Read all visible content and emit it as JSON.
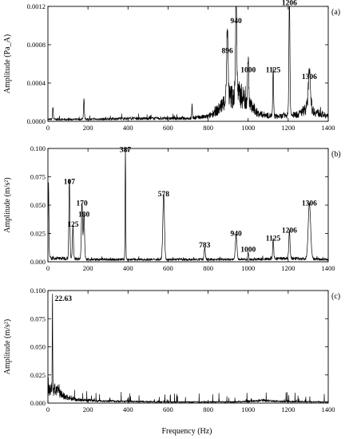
{
  "figure": {
    "xlabel": "Frequency (Hz)"
  },
  "chart_data": [
    {
      "type": "line",
      "panel_tag": "(a)",
      "ylabel": "Amplitude (Pa_A)",
      "xlim": [
        0,
        1400
      ],
      "ylim": [
        0,
        0.0012
      ],
      "x_ticks": [
        0,
        200,
        400,
        600,
        800,
        1000,
        1200,
        1400
      ],
      "x_tick_labels": [
        "0",
        "200",
        "400",
        "600",
        "800",
        "1000",
        "1200",
        "1400"
      ],
      "y_ticks": [
        0,
        0.0004,
        0.0008,
        0.0012
      ],
      "y_tick_labels": [
        "0.0000",
        "0.0004",
        "0.0008",
        "0.0012"
      ],
      "baseline": [
        [
          0,
          2e-05
        ],
        [
          200,
          2e-05
        ],
        [
          400,
          3e-05
        ],
        [
          600,
          3e-05
        ],
        [
          700,
          3e-05
        ],
        [
          800,
          5e-05
        ],
        [
          850,
          0.00012
        ],
        [
          880,
          0.0002
        ],
        [
          900,
          0.00025
        ],
        [
          960,
          0.00028
        ],
        [
          1050,
          8e-05
        ],
        [
          1100,
          6e-05
        ],
        [
          1150,
          5e-05
        ],
        [
          1250,
          7e-05
        ],
        [
          1280,
          0.00012
        ],
        [
          1306,
          0.00016
        ],
        [
          1330,
          0.0001
        ],
        [
          1400,
          5e-05
        ]
      ],
      "noise": 4e-05,
      "peaks": [
        {
          "x": 25,
          "y": 0.00012,
          "width": 2
        },
        {
          "x": 180,
          "y": 0.0002,
          "width": 2
        },
        {
          "x": 720,
          "y": 0.00013,
          "width": 1.5
        },
        {
          "x": 896,
          "y": 0.00068,
          "width": 3.5
        },
        {
          "x": 940,
          "y": 0.00099,
          "width": 3
        },
        {
          "x": 1000,
          "y": 0.00048,
          "width": 2.5
        },
        {
          "x": 1125,
          "y": 0.00048,
          "width": 2
        },
        {
          "x": 1206,
          "y": 0.00118,
          "width": 2.5
        },
        {
          "x": 1306,
          "y": 0.00038,
          "width": 5
        }
      ],
      "annotations": [
        {
          "text": "896",
          "x": 896,
          "y": 0.00068
        },
        {
          "text": "940",
          "x": 940,
          "y": 0.00099
        },
        {
          "text": "1000",
          "x": 1000,
          "y": 0.00048
        },
        {
          "text": "1125",
          "x": 1125,
          "y": 0.00048
        },
        {
          "text": "1206",
          "x": 1206,
          "y": 0.00118
        },
        {
          "text": "1306",
          "x": 1306,
          "y": 0.00041
        }
      ]
    },
    {
      "type": "line",
      "panel_tag": "(b)",
      "ylabel": "Amplitude (m/s²)",
      "xlim": [
        0,
        1400
      ],
      "ylim": [
        0,
        0.1
      ],
      "x_ticks": [
        0,
        200,
        400,
        600,
        800,
        1000,
        1200,
        1400
      ],
      "x_tick_labels": [
        "0",
        "200",
        "400",
        "600",
        "800",
        "1000",
        "1200",
        "1400"
      ],
      "y_ticks": [
        0,
        0.025,
        0.05,
        0.075,
        0.1
      ],
      "y_tick_labels": [
        "0.000",
        "0.025",
        "0.050",
        "0.075",
        "0.100"
      ],
      "baseline": [
        [
          0,
          0.003
        ],
        [
          100,
          0.003
        ],
        [
          200,
          0.002
        ],
        [
          400,
          0.002
        ],
        [
          600,
          0.002
        ],
        [
          800,
          0.002
        ],
        [
          1000,
          0.002
        ],
        [
          1200,
          0.003
        ],
        [
          1400,
          0.002
        ]
      ],
      "noise": 0.002,
      "peaks": [
        {
          "x": 3,
          "y": 0.062,
          "width": 2
        },
        {
          "x": 107,
          "y": 0.066,
          "width": 2.5
        },
        {
          "x": 125,
          "y": 0.028,
          "width": 2.5
        },
        {
          "x": 170,
          "y": 0.047,
          "width": 3
        },
        {
          "x": 180,
          "y": 0.037,
          "width": 3
        },
        {
          "x": 387,
          "y": 0.094,
          "width": 1.5
        },
        {
          "x": 578,
          "y": 0.055,
          "width": 4
        },
        {
          "x": 783,
          "y": 0.01,
          "width": 3
        },
        {
          "x": 940,
          "y": 0.02,
          "width": 4
        },
        {
          "x": 1000,
          "y": 0.006,
          "width": 2
        },
        {
          "x": 1125,
          "y": 0.016,
          "width": 2.5
        },
        {
          "x": 1206,
          "y": 0.023,
          "width": 3
        },
        {
          "x": 1306,
          "y": 0.047,
          "width": 6
        }
      ],
      "annotations": [
        {
          "text": "107",
          "x": 107,
          "y": 0.066
        },
        {
          "text": "125",
          "x": 125,
          "y": 0.028
        },
        {
          "text": "170",
          "x": 170,
          "y": 0.047
        },
        {
          "text": "180",
          "x": 180,
          "y": 0.037
        },
        {
          "text": "387",
          "x": 387,
          "y": 0.094
        },
        {
          "text": "578",
          "x": 578,
          "y": 0.055
        },
        {
          "text": "783",
          "x": 783,
          "y": 0.01
        },
        {
          "text": "940",
          "x": 940,
          "y": 0.02
        },
        {
          "text": "1000",
          "x": 1000,
          "y": 0.006
        },
        {
          "text": "1125",
          "x": 1125,
          "y": 0.016
        },
        {
          "text": "1206",
          "x": 1206,
          "y": 0.023
        },
        {
          "text": "1306",
          "x": 1306,
          "y": 0.047
        }
      ]
    },
    {
      "type": "line",
      "panel_tag": "(c)",
      "ylabel": "Amplitude (m/s²)",
      "xlim": [
        0,
        1400
      ],
      "ylim": [
        0,
        0.1
      ],
      "x_ticks": [
        0,
        200,
        400,
        600,
        800,
        1000,
        1200,
        1400
      ],
      "x_tick_labels": [
        "0",
        "200",
        "400",
        "600",
        "800",
        "1000",
        "1200",
        "1400"
      ],
      "y_ticks": [
        0,
        0.025,
        0.05,
        0.075,
        0.1
      ],
      "y_tick_labels": [
        "0.000",
        "0.025",
        "0.050",
        "0.075",
        "0.100"
      ],
      "baseline": [
        [
          0,
          0.012
        ],
        [
          40,
          0.012
        ],
        [
          80,
          0.006
        ],
        [
          150,
          0.003
        ],
        [
          250,
          0.002
        ],
        [
          400,
          0.0015
        ],
        [
          600,
          0.001
        ],
        [
          900,
          0.001
        ],
        [
          1000,
          0.0015
        ],
        [
          1080,
          0.0025
        ],
        [
          1150,
          0.0015
        ],
        [
          1400,
          0.001
        ]
      ],
      "noise": 0.008,
      "peaks": [
        {
          "x": 22.63,
          "y": 0.088,
          "width": 1
        }
      ],
      "annotations": [
        {
          "text": "22.63",
          "x": 22.63,
          "y": 0.088
        }
      ]
    }
  ]
}
